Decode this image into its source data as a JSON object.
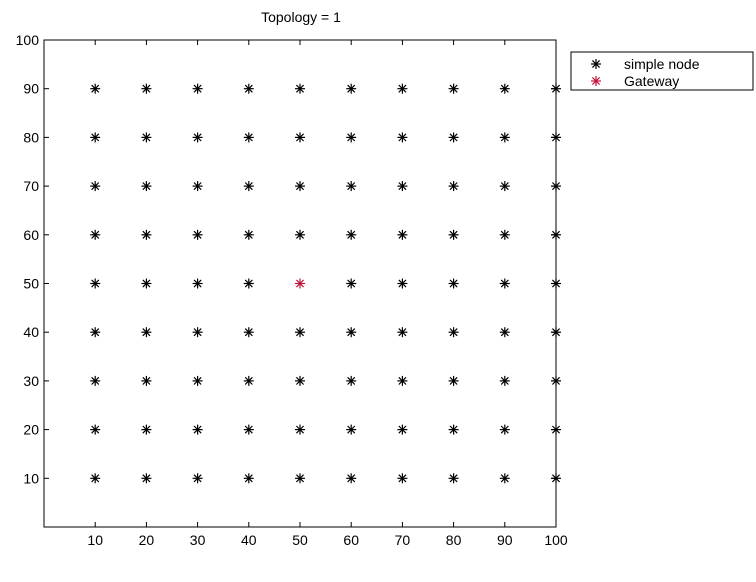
{
  "chart_data": {
    "type": "scatter",
    "title": "Topology = 1",
    "xlabel": "",
    "ylabel": "",
    "xlim": [
      0,
      100
    ],
    "ylim": [
      0,
      100
    ],
    "x_ticks": [
      10,
      20,
      30,
      40,
      50,
      60,
      70,
      80,
      90,
      100
    ],
    "y_ticks": [
      10,
      20,
      30,
      40,
      50,
      60,
      70,
      80,
      90,
      100
    ],
    "grid": false,
    "legend_position": "outside-top-right",
    "marker": "asterisk",
    "series": [
      {
        "name": "simple node",
        "color": "#000000",
        "points": [
          [
            10,
            10
          ],
          [
            10,
            20
          ],
          [
            10,
            30
          ],
          [
            10,
            40
          ],
          [
            10,
            50
          ],
          [
            10,
            60
          ],
          [
            10,
            70
          ],
          [
            10,
            80
          ],
          [
            10,
            90
          ],
          [
            20,
            10
          ],
          [
            20,
            20
          ],
          [
            20,
            30
          ],
          [
            20,
            40
          ],
          [
            20,
            50
          ],
          [
            20,
            60
          ],
          [
            20,
            70
          ],
          [
            20,
            80
          ],
          [
            20,
            90
          ],
          [
            30,
            10
          ],
          [
            30,
            20
          ],
          [
            30,
            30
          ],
          [
            30,
            40
          ],
          [
            30,
            50
          ],
          [
            30,
            60
          ],
          [
            30,
            70
          ],
          [
            30,
            80
          ],
          [
            30,
            90
          ],
          [
            40,
            10
          ],
          [
            40,
            20
          ],
          [
            40,
            30
          ],
          [
            40,
            40
          ],
          [
            40,
            50
          ],
          [
            40,
            60
          ],
          [
            40,
            70
          ],
          [
            40,
            80
          ],
          [
            40,
            90
          ],
          [
            50,
            10
          ],
          [
            50,
            20
          ],
          [
            50,
            30
          ],
          [
            50,
            40
          ],
          [
            50,
            60
          ],
          [
            50,
            70
          ],
          [
            50,
            80
          ],
          [
            50,
            90
          ],
          [
            60,
            10
          ],
          [
            60,
            20
          ],
          [
            60,
            30
          ],
          [
            60,
            40
          ],
          [
            60,
            50
          ],
          [
            60,
            60
          ],
          [
            60,
            70
          ],
          [
            60,
            80
          ],
          [
            60,
            90
          ],
          [
            70,
            10
          ],
          [
            70,
            20
          ],
          [
            70,
            30
          ],
          [
            70,
            40
          ],
          [
            70,
            50
          ],
          [
            70,
            60
          ],
          [
            70,
            70
          ],
          [
            70,
            80
          ],
          [
            70,
            90
          ],
          [
            80,
            10
          ],
          [
            80,
            20
          ],
          [
            80,
            30
          ],
          [
            80,
            40
          ],
          [
            80,
            50
          ],
          [
            80,
            60
          ],
          [
            80,
            70
          ],
          [
            80,
            80
          ],
          [
            80,
            90
          ],
          [
            90,
            10
          ],
          [
            90,
            20
          ],
          [
            90,
            30
          ],
          [
            90,
            40
          ],
          [
            90,
            50
          ],
          [
            90,
            60
          ],
          [
            90,
            70
          ],
          [
            90,
            80
          ],
          [
            90,
            90
          ],
          [
            100,
            10
          ],
          [
            100,
            20
          ],
          [
            100,
            30
          ],
          [
            100,
            40
          ],
          [
            100,
            50
          ],
          [
            100,
            60
          ],
          [
            100,
            70
          ],
          [
            100,
            80
          ],
          [
            100,
            90
          ]
        ]
      },
      {
        "name": "Gateway",
        "color": "#c0143c",
        "points": [
          [
            50,
            50
          ]
        ]
      }
    ]
  }
}
